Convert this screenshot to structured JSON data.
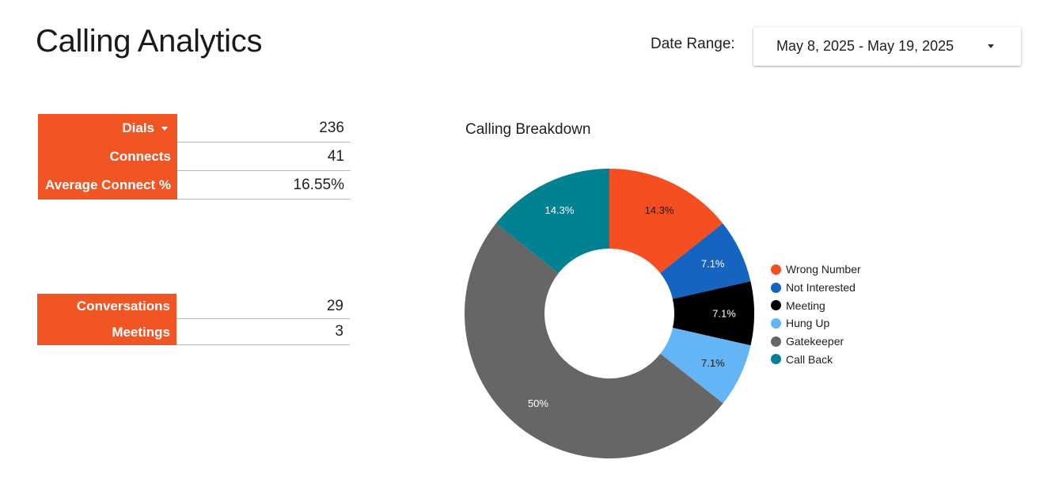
{
  "header": {
    "title": "Calling Analytics",
    "date_range_label": "Date Range:",
    "date_range_value": "May 8, 2025 - May 19, 2025"
  },
  "scorecard_top": [
    {
      "label": "Dials",
      "value": "236"
    },
    {
      "label": "Connects",
      "value": "41"
    },
    {
      "label": "Average Connect %",
      "value": "16.55%"
    }
  ],
  "scorecard_bottom": [
    {
      "label": "Conversations",
      "value": "29"
    },
    {
      "label": "Meetings",
      "value": "3"
    }
  ],
  "colors": {
    "accent": "#f05523",
    "hole": "#ffffff"
  },
  "chart_data": {
    "type": "pie",
    "title": "Calling Breakdown",
    "donut": true,
    "legend_position": "right",
    "slices": [
      {
        "name": "Wrong Number",
        "value": 14.3,
        "label": "14.3%",
        "color": "#f44e22",
        "label_color": "#1a1a1a"
      },
      {
        "name": "Not Interested",
        "value": 7.1,
        "label": "7.1%",
        "color": "#1565c0",
        "label_color": "#ffffff"
      },
      {
        "name": "Meeting",
        "value": 7.1,
        "label": "7.1%",
        "color": "#000000",
        "label_color": "#ffffff"
      },
      {
        "name": "Hung Up",
        "value": 7.1,
        "label": "7.1%",
        "color": "#64b5f6",
        "label_color": "#1a1a1a"
      },
      {
        "name": "Gatekeeper",
        "value": 50,
        "label": "50%",
        "color": "#666666",
        "label_color": "#ffffff"
      },
      {
        "name": "Call Back",
        "value": 14.3,
        "label": "14.3%",
        "color": "#028191",
        "label_color": "#ffffff"
      }
    ]
  }
}
